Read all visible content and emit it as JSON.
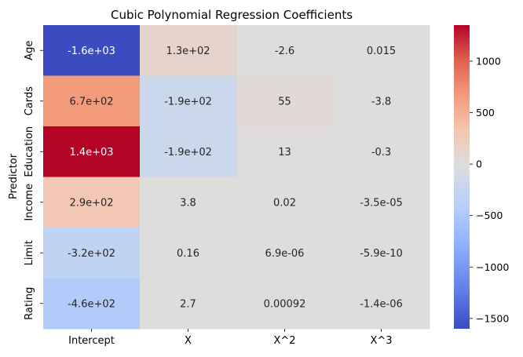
{
  "chart_data": {
    "type": "heatmap",
    "title": "Cubic Polynomial Regression Coefficients",
    "xlabel": "",
    "ylabel": "Predictor",
    "columns": [
      "Intercept",
      "X",
      "X^2",
      "X^3"
    ],
    "rows": [
      "Age",
      "Cards",
      "Education",
      "Income",
      "Limit",
      "Rating"
    ],
    "values": [
      [
        -1600,
        130,
        -2.6,
        0.015
      ],
      [
        670,
        -190,
        55,
        -3.8
      ],
      [
        1400,
        -190,
        13,
        -0.3
      ],
      [
        290,
        3.8,
        0.02,
        -3.5e-05
      ],
      [
        -320,
        0.16,
        6.9e-06,
        -5.9e-10
      ],
      [
        -460,
        2.7,
        0.00092,
        -1.4e-06
      ]
    ],
    "annotations": [
      [
        "-1.6e+03",
        "1.3e+02",
        "-2.6",
        "0.015"
      ],
      [
        "6.7e+02",
        "-1.9e+02",
        "55",
        "-3.8"
      ],
      [
        "1.4e+03",
        "-1.9e+02",
        "13",
        "-0.3"
      ],
      [
        "2.9e+02",
        "3.8",
        "0.02",
        "-3.5e-05"
      ],
      [
        "-3.2e+02",
        "0.16",
        "6.9e-06",
        "-5.9e-10"
      ],
      [
        "-4.6e+02",
        "2.7",
        "0.00092",
        "-1.4e-06"
      ]
    ],
    "colormap": "coolwarm",
    "colorbar": {
      "range": [
        -1600,
        1350
      ],
      "ticks": [
        -1500,
        -1000,
        -500,
        0,
        500,
        1000
      ],
      "tick_labels": [
        "−1500",
        "−1000",
        "−500",
        "0",
        "500",
        "1000"
      ]
    }
  }
}
